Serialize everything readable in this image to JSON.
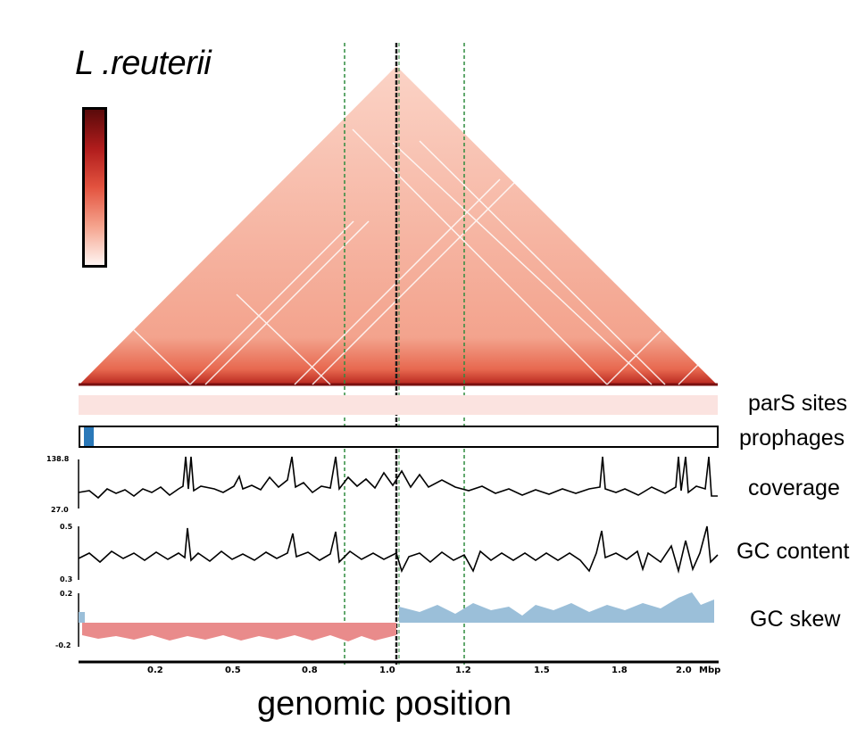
{
  "title": "L .reuterii",
  "colorbar": {
    "colors": [
      "#5a0a0a",
      "#b01c1c",
      "#e3533f",
      "#f5a38d",
      "#fff5f2"
    ]
  },
  "tracks": {
    "pars": "parS sites",
    "prophages": "prophages",
    "coverage": {
      "label": "coverage",
      "ymax": "138.8",
      "ymin": "27.0"
    },
    "gc_content": {
      "label": "GC content",
      "ymax": "0.5",
      "ymin": "0.3"
    },
    "gc_skew": {
      "label": "GC skew",
      "ymax": "0.2",
      "ymin": "-0.2"
    }
  },
  "x_axis": {
    "label": "genomic position",
    "ticks": [
      "0.2",
      "0.5",
      "0.8",
      "1.0",
      "1.2",
      "1.5",
      "1.8",
      "2.0"
    ],
    "unit": "Mbp"
  },
  "colors": {
    "skew_negative": "#e98b8b",
    "skew_positive": "#9bbfd9",
    "guide": "#2e8b3e",
    "prophage": "#2a78b8"
  }
}
